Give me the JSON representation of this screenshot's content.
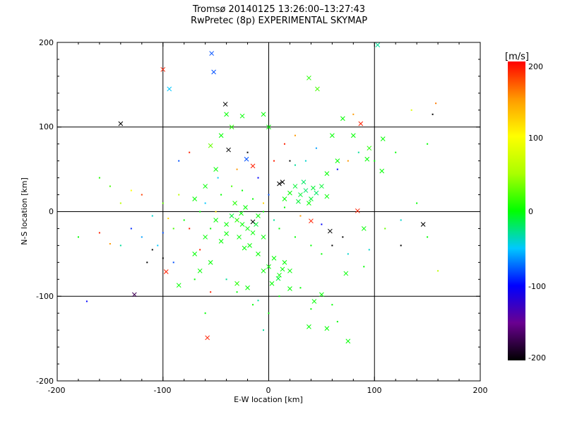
{
  "chart_data": {
    "type": "scatter",
    "title": "Tromsø 20140125 13:26:00–13:27:43",
    "subtitle": "RwPretec (8p) EXPERIMENTAL SKYMAP",
    "xlabel": "E-W location [km]",
    "ylabel": "N-S location [km]",
    "xlim": [
      -200,
      200
    ],
    "ylim": [
      -200,
      200
    ],
    "xticks": [
      "-200",
      "-100",
      "0",
      "100",
      "200"
    ],
    "yticks": [
      "-200",
      "-100",
      "0",
      "100",
      "200"
    ],
    "grid": true,
    "colorbar": {
      "label": "[m/s]",
      "range": [
        -200,
        200
      ],
      "ticks": [
        "200",
        "100",
        "0",
        "-100",
        "-200"
      ],
      "colors": [
        "#000000",
        "#6a0090",
        "#0000ff",
        "#00c8ff",
        "#00ff00",
        "#aaff00",
        "#ffff00",
        "#ff9900",
        "#ff0000"
      ]
    },
    "points_columns": [
      "x_km",
      "y_km",
      "velocity_ms",
      "large_marker"
    ],
    "points": [
      [
        -54,
        187,
        -80,
        1
      ],
      [
        -52,
        165,
        -80,
        1
      ],
      [
        -94,
        145,
        -50,
        1
      ],
      [
        -100,
        168,
        190,
        1
      ],
      [
        -140,
        104,
        -200,
        1
      ],
      [
        -41,
        127,
        -200,
        1
      ],
      [
        -38,
        73,
        -200,
        1
      ],
      [
        103,
        197,
        -30,
        1
      ],
      [
        87,
        104,
        190,
        1
      ],
      [
        146,
        -15,
        -200,
        1
      ],
      [
        58,
        -23,
        -200,
        1
      ],
      [
        40,
        -11,
        190,
        1
      ],
      [
        -15,
        -12,
        -200,
        1
      ],
      [
        10,
        33,
        -200,
        1
      ],
      [
        13,
        35,
        -200,
        1
      ],
      [
        -127,
        -98,
        -170,
        1
      ],
      [
        -97,
        -71,
        190,
        1
      ],
      [
        -58,
        -149,
        190,
        1
      ],
      [
        -172,
        -106,
        -100,
        0
      ],
      [
        -15,
        54,
        190,
        1
      ],
      [
        84,
        1,
        190,
        1
      ],
      [
        -21,
        62,
        -80,
        1
      ],
      [
        38,
        158,
        10,
        1
      ],
      [
        46,
        145,
        20,
        1
      ],
      [
        108,
        86,
        0,
        1
      ],
      [
        75,
        -153,
        0,
        1
      ],
      [
        55,
        -138,
        0,
        1
      ],
      [
        38,
        -136,
        0,
        1
      ],
      [
        50,
        -98,
        0,
        1
      ],
      [
        43,
        -106,
        0,
        1
      ],
      [
        20,
        -91,
        0,
        1
      ],
      [
        9,
        -79,
        -10,
        1
      ],
      [
        13,
        -68,
        0,
        1
      ],
      [
        -23,
        -43,
        0,
        1
      ],
      [
        -40,
        -26,
        0,
        1
      ],
      [
        73,
        -73,
        0,
        1
      ],
      [
        90,
        -20,
        0,
        1
      ],
      [
        107,
        48,
        0,
        1
      ],
      [
        93,
        62,
        0,
        1
      ],
      [
        -25,
        -15,
        0,
        1
      ],
      [
        -30,
        -10,
        10,
        1
      ],
      [
        -20,
        -20,
        0,
        1
      ],
      [
        -35,
        -5,
        -10,
        1
      ],
      [
        -15,
        -25,
        0,
        1
      ],
      [
        -28,
        -30,
        0,
        1
      ],
      [
        -40,
        -15,
        0,
        1
      ],
      [
        -10,
        -5,
        0,
        1
      ],
      [
        -22,
        5,
        0,
        1
      ],
      [
        -32,
        10,
        10,
        1
      ],
      [
        -45,
        -35,
        0,
        1
      ],
      [
        -18,
        -40,
        0,
        1
      ],
      [
        -5,
        -30,
        0,
        1
      ],
      [
        -50,
        -10,
        0,
        1
      ],
      [
        -26,
        -2,
        0,
        1
      ],
      [
        -12,
        -15,
        -10,
        1
      ],
      [
        30,
        20,
        -10,
        1
      ],
      [
        35,
        25,
        -20,
        1
      ],
      [
        40,
        15,
        -10,
        1
      ],
      [
        25,
        30,
        -10,
        1
      ],
      [
        45,
        22,
        -20,
        1
      ],
      [
        38,
        10,
        0,
        1
      ],
      [
        28,
        12,
        -10,
        1
      ],
      [
        50,
        30,
        -10,
        1
      ],
      [
        20,
        22,
        0,
        1
      ],
      [
        33,
        35,
        -20,
        1
      ],
      [
        42,
        28,
        -10,
        1
      ],
      [
        55,
        18,
        0,
        1
      ],
      [
        15,
        15,
        0,
        1
      ],
      [
        5,
        -55,
        0,
        1
      ],
      [
        0,
        -65,
        0,
        1
      ],
      [
        10,
        -75,
        0,
        1
      ],
      [
        -5,
        -70,
        0,
        1
      ],
      [
        15,
        -60,
        0,
        1
      ],
      [
        -10,
        -50,
        0,
        1
      ],
      [
        3,
        -85,
        0,
        1
      ],
      [
        20,
        -70,
        0,
        1
      ],
      [
        -60,
        -30,
        0,
        1
      ],
      [
        -70,
        -50,
        0,
        1
      ],
      [
        -65,
        -70,
        0,
        1
      ],
      [
        -85,
        -87,
        0,
        1
      ],
      [
        -55,
        -60,
        0,
        1
      ],
      [
        -30,
        -85,
        10,
        1
      ],
      [
        -20,
        -90,
        0,
        1
      ],
      [
        -60,
        30,
        0,
        1
      ],
      [
        -50,
        50,
        0,
        1
      ],
      [
        -70,
        15,
        0,
        1
      ],
      [
        -45,
        90,
        0,
        1
      ],
      [
        -35,
        100,
        10,
        1
      ],
      [
        -25,
        113,
        0,
        1
      ],
      [
        -5,
        115,
        0,
        1
      ],
      [
        0,
        100,
        0,
        1
      ],
      [
        -40,
        115,
        0,
        1
      ],
      [
        -55,
        78,
        30,
        1
      ],
      [
        60,
        90,
        0,
        1
      ],
      [
        70,
        110,
        0,
        1
      ],
      [
        80,
        90,
        0,
        1
      ],
      [
        95,
        75,
        10,
        1
      ],
      [
        65,
        60,
        0,
        1
      ],
      [
        55,
        45,
        0,
        1
      ],
      [
        -80,
        -10,
        0,
        0
      ],
      [
        -90,
        -20,
        20,
        0
      ],
      [
        -100,
        10,
        30,
        0
      ],
      [
        -110,
        -5,
        -40,
        0
      ],
      [
        -120,
        -30,
        -60,
        0
      ],
      [
        -130,
        -20,
        -90,
        0
      ],
      [
        -150,
        -38,
        150,
        0
      ],
      [
        -160,
        -25,
        190,
        0
      ],
      [
        -140,
        10,
        60,
        0
      ],
      [
        -130,
        25,
        100,
        0
      ],
      [
        -120,
        20,
        180,
        0
      ],
      [
        -110,
        -45,
        -200,
        0
      ],
      [
        -100,
        -55,
        -200,
        0
      ],
      [
        -115,
        -60,
        -200,
        0
      ],
      [
        -95,
        -8,
        120,
        0
      ],
      [
        -85,
        20,
        60,
        0
      ],
      [
        -75,
        -20,
        190,
        0
      ],
      [
        -65,
        -45,
        190,
        0
      ],
      [
        -100,
        -25,
        -80,
        0
      ],
      [
        -105,
        -40,
        -50,
        0
      ],
      [
        -140,
        -40,
        -30,
        0
      ],
      [
        -150,
        30,
        20,
        0
      ],
      [
        -160,
        40,
        10,
        0
      ],
      [
        -180,
        -30,
        0,
        0
      ],
      [
        -75,
        70,
        190,
        0
      ],
      [
        -85,
        60,
        -80,
        0
      ],
      [
        -60,
        10,
        -50,
        0
      ],
      [
        -50,
        0,
        120,
        0
      ],
      [
        -30,
        50,
        150,
        0
      ],
      [
        -20,
        70,
        -200,
        0
      ],
      [
        -10,
        40,
        -100,
        0
      ],
      [
        5,
        60,
        190,
        0
      ],
      [
        15,
        80,
        190,
        0
      ],
      [
        25,
        90,
        150,
        0
      ],
      [
        20,
        60,
        -200,
        0
      ],
      [
        0,
        20,
        -80,
        0
      ],
      [
        -5,
        10,
        120,
        0
      ],
      [
        30,
        -5,
        150,
        0
      ],
      [
        50,
        -15,
        -100,
        0
      ],
      [
        60,
        -40,
        -200,
        0
      ],
      [
        75,
        -50,
        -40,
        0
      ],
      [
        90,
        -65,
        0,
        0
      ],
      [
        110,
        -20,
        30,
        0
      ],
      [
        125,
        -10,
        -40,
        0
      ],
      [
        140,
        10,
        0,
        0
      ],
      [
        150,
        -30,
        0,
        0
      ],
      [
        120,
        70,
        0,
        0
      ],
      [
        135,
        120,
        80,
        0
      ],
      [
        155,
        115,
        -200,
        0
      ],
      [
        158,
        128,
        160,
        0
      ],
      [
        150,
        80,
        0,
        0
      ],
      [
        160,
        -70,
        60,
        0
      ],
      [
        125,
        -40,
        -200,
        0
      ],
      [
        95,
        -45,
        -40,
        0
      ],
      [
        70,
        -30,
        -200,
        0
      ],
      [
        65,
        50,
        -100,
        0
      ],
      [
        75,
        60,
        150,
        0
      ],
      [
        80,
        115,
        150,
        0
      ],
      [
        85,
        70,
        -30,
        0
      ],
      [
        100,
        60,
        0,
        0
      ],
      [
        45,
        75,
        -60,
        0
      ],
      [
        35,
        60,
        -40,
        0
      ],
      [
        25,
        55,
        -30,
        0
      ],
      [
        -40,
        -80,
        -30,
        0
      ],
      [
        -30,
        -95,
        0,
        0
      ],
      [
        -10,
        -105,
        -30,
        0
      ],
      [
        0,
        -120,
        0,
        0
      ],
      [
        -5,
        -140,
        -30,
        0
      ],
      [
        -15,
        -110,
        0,
        0
      ],
      [
        10,
        -100,
        0,
        0
      ],
      [
        -60,
        -120,
        0,
        0
      ],
      [
        -55,
        -95,
        190,
        0
      ],
      [
        -70,
        -80,
        0,
        0
      ],
      [
        -90,
        -60,
        -80,
        0
      ],
      [
        30,
        -90,
        0,
        0
      ],
      [
        40,
        -115,
        0,
        0
      ],
      [
        60,
        -110,
        0,
        0
      ],
      [
        65,
        -130,
        0,
        0
      ],
      [
        25,
        -30,
        0,
        0
      ],
      [
        40,
        -40,
        0,
        0
      ],
      [
        50,
        -50,
        0,
        0
      ],
      [
        10,
        -20,
        0,
        0
      ],
      [
        -5,
        0,
        0,
        0
      ],
      [
        15,
        5,
        0,
        0
      ],
      [
        5,
        -10,
        -30,
        0
      ],
      [
        -45,
        20,
        0,
        0
      ],
      [
        -35,
        30,
        20,
        0
      ],
      [
        -25,
        25,
        0,
        0
      ],
      [
        -15,
        15,
        0,
        0
      ],
      [
        -55,
        -20,
        0,
        0
      ],
      [
        -65,
        0,
        0,
        0
      ],
      [
        -48,
        40,
        -50,
        0
      ]
    ]
  }
}
